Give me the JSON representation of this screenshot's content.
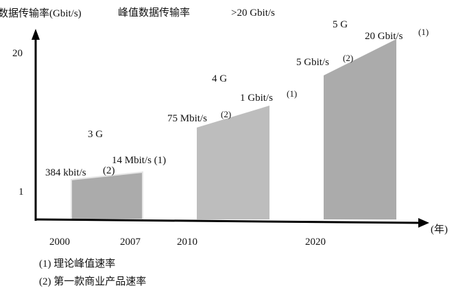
{
  "axes": {
    "y_label": "数据传输率(Gbit/s)",
    "x_label": "(年)",
    "y_ticks": [
      "20",
      "1"
    ],
    "x_ticks": [
      "2000",
      "2007",
      "2010",
      "2020"
    ]
  },
  "header": {
    "peak_label": "峰值数据传输率",
    "peak_value": ">20 Gbit/s"
  },
  "generations": [
    {
      "name": "3 G",
      "commercial": "384 kbit/s",
      "commercial_mark": "(2)",
      "theoretical": "14 Mbit/s (1)",
      "color": "#ababab"
    },
    {
      "name": "4 G",
      "commercial": "75 Mbit/s",
      "commercial_mark": "(2)",
      "theoretical": "1 Gbit/s",
      "theoretical_mark": "(1)",
      "color": "#bdbdbd"
    },
    {
      "name": "5 G",
      "commercial": "5 Gbit/s",
      "commercial_mark": "(2)",
      "theoretical": "20 Gbit/s",
      "theoretical_mark": "(1)",
      "color": "#ababab"
    }
  ],
  "legend": [
    "(1) 理论峰值速率",
    "(2) 第一款商业产品速率"
  ]
}
